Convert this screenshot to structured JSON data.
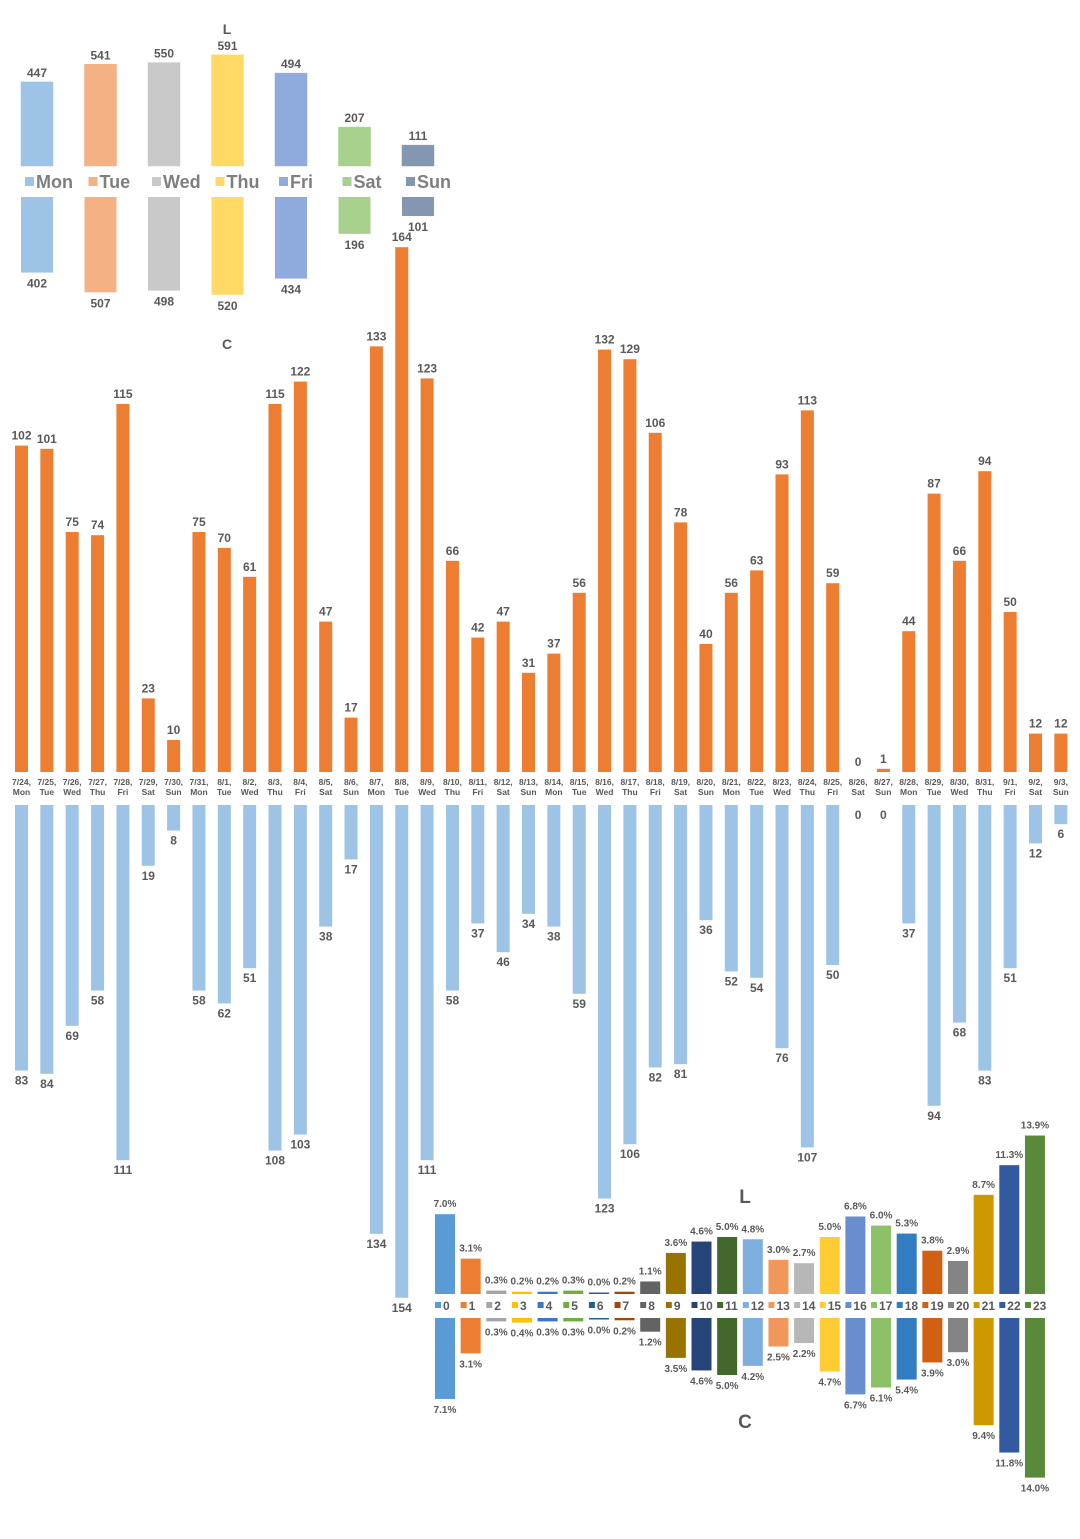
{
  "chart_data": [
    {
      "id": "weekday",
      "type": "bar",
      "layout": "mirrored",
      "title_top": "L",
      "title_bottom": "C",
      "categories": [
        "Mon",
        "Tue",
        "Wed",
        "Thu",
        "Fri",
        "Sat",
        "Sun"
      ],
      "colors": [
        "#9dc3e6",
        "#f4b183",
        "#c9c9c9",
        "#ffd966",
        "#8faadc",
        "#a9d18e",
        "#8497b0"
      ],
      "series": [
        {
          "name": "L",
          "values": [
            447,
            541,
            550,
            591,
            494,
            207,
            111
          ]
        },
        {
          "name": "C",
          "values": [
            402,
            507,
            498,
            520,
            434,
            196,
            101
          ]
        }
      ],
      "legend": "center"
    },
    {
      "id": "daily",
      "type": "bar",
      "layout": "mirrored",
      "categories": [
        "7/24, Mon",
        "7/25, Tue",
        "7/26, Wed",
        "7/27, Thu",
        "7/28, Fri",
        "7/29, Sat",
        "7/30, Sun",
        "7/31, Mon",
        "8/1, Tue",
        "8/2, Wed",
        "8/3, Thu",
        "8/4, Fri",
        "8/5, Sat",
        "8/6, Sun",
        "8/7, Mon",
        "8/8, Tue",
        "8/9, Wed",
        "8/10, Thu",
        "8/11, Fri",
        "8/12, Sat",
        "8/13, Sun",
        "8/14, Mon",
        "8/15, Tue",
        "8/16, Wed",
        "8/17, Thu",
        "8/18, Fri",
        "8/19, Sat",
        "8/20, Sun",
        "8/21, Mon",
        "8/22, Tue",
        "8/23, Wed",
        "8/24, Thu",
        "8/25, Fri",
        "8/26, Sat",
        "8/27, Sun",
        "8/28, Mon",
        "8/29, Tue",
        "8/30, Wed",
        "8/31, Thu",
        "9/1, Fri",
        "9/2, Sat",
        "9/3, Sun"
      ],
      "colors": [
        "#ed7d31",
        "#9dc3e6"
      ],
      "series": [
        {
          "values": [
            102,
            101,
            75,
            74,
            115,
            23,
            10,
            75,
            70,
            61,
            115,
            122,
            47,
            17,
            133,
            164,
            123,
            66,
            42,
            47,
            31,
            37,
            56,
            132,
            129,
            106,
            78,
            40,
            56,
            63,
            93,
            113,
            59,
            0,
            1,
            44,
            87,
            66,
            94,
            50,
            12,
            12
          ]
        },
        {
          "values": [
            83,
            84,
            69,
            58,
            111,
            19,
            8,
            58,
            62,
            51,
            108,
            103,
            38,
            17,
            134,
            154,
            111,
            58,
            37,
            46,
            34,
            38,
            59,
            123,
            106,
            82,
            81,
            36,
            52,
            54,
            76,
            107,
            50,
            0,
            0,
            37,
            94,
            68,
            83,
            51,
            12,
            6
          ]
        }
      ]
    },
    {
      "id": "hourly",
      "type": "bar",
      "layout": "mirrored",
      "title_top": "L",
      "title_bottom": "C",
      "categories": [
        "0",
        "1",
        "2",
        "3",
        "4",
        "5",
        "6",
        "7",
        "8",
        "9",
        "10",
        "11",
        "12",
        "13",
        "14",
        "15",
        "16",
        "17",
        "18",
        "19",
        "20",
        "21",
        "22",
        "23"
      ],
      "colors": [
        "#5b9bd5",
        "#ed7d31",
        "#a5a5a5",
        "#ffc000",
        "#4472c4",
        "#70ad47",
        "#255e91",
        "#9e480e",
        "#636363",
        "#997300",
        "#264478",
        "#43682b",
        "#7cafdd",
        "#f1975a",
        "#b7b7b7",
        "#ffcd33",
        "#698ed0",
        "#8cc168",
        "#327dc2",
        "#d26012",
        "#848484",
        "#cc9a00",
        "#335aa1",
        "#5a8a39"
      ],
      "series": [
        {
          "name": "L",
          "labels": [
            "7.0%",
            "3.1%",
            "0.3%",
            "0.2%",
            "0.2%",
            "0.3%",
            "0.0%",
            "0.2%",
            "1.1%",
            "3.6%",
            "4.6%",
            "5.0%",
            "4.8%",
            "3.0%",
            "2.7%",
            "5.0%",
            "6.8%",
            "6.0%",
            "5.3%",
            "3.8%",
            "2.9%",
            "8.7%",
            "11.3%",
            "13.9%"
          ],
          "values": [
            7.0,
            3.1,
            0.3,
            0.2,
            0.2,
            0.3,
            0.0,
            0.2,
            1.1,
            3.6,
            4.6,
            5.0,
            4.8,
            3.0,
            2.7,
            5.0,
            6.8,
            6.0,
            5.3,
            3.8,
            2.9,
            8.7,
            11.3,
            13.9
          ]
        },
        {
          "name": "C",
          "labels": [
            "7.1%",
            "3.1%",
            "0.3%",
            "0.4%",
            "0.3%",
            "0.3%",
            "0.0%",
            "0.2%",
            "1.2%",
            "3.5%",
            "4.6%",
            "5.0%",
            "4.2%",
            "2.5%",
            "2.2%",
            "4.7%",
            "6.7%",
            "6.1%",
            "5.4%",
            "3.9%",
            "3.0%",
            "9.4%",
            "11.8%",
            "14.0%"
          ],
          "values": [
            7.1,
            3.1,
            0.3,
            0.4,
            0.3,
            0.3,
            0.0,
            0.2,
            1.2,
            3.5,
            4.6,
            5.0,
            4.2,
            2.5,
            2.2,
            4.7,
            6.7,
            6.1,
            5.4,
            3.9,
            3.0,
            9.4,
            11.8,
            14.0
          ]
        }
      ],
      "legend": "center"
    }
  ]
}
